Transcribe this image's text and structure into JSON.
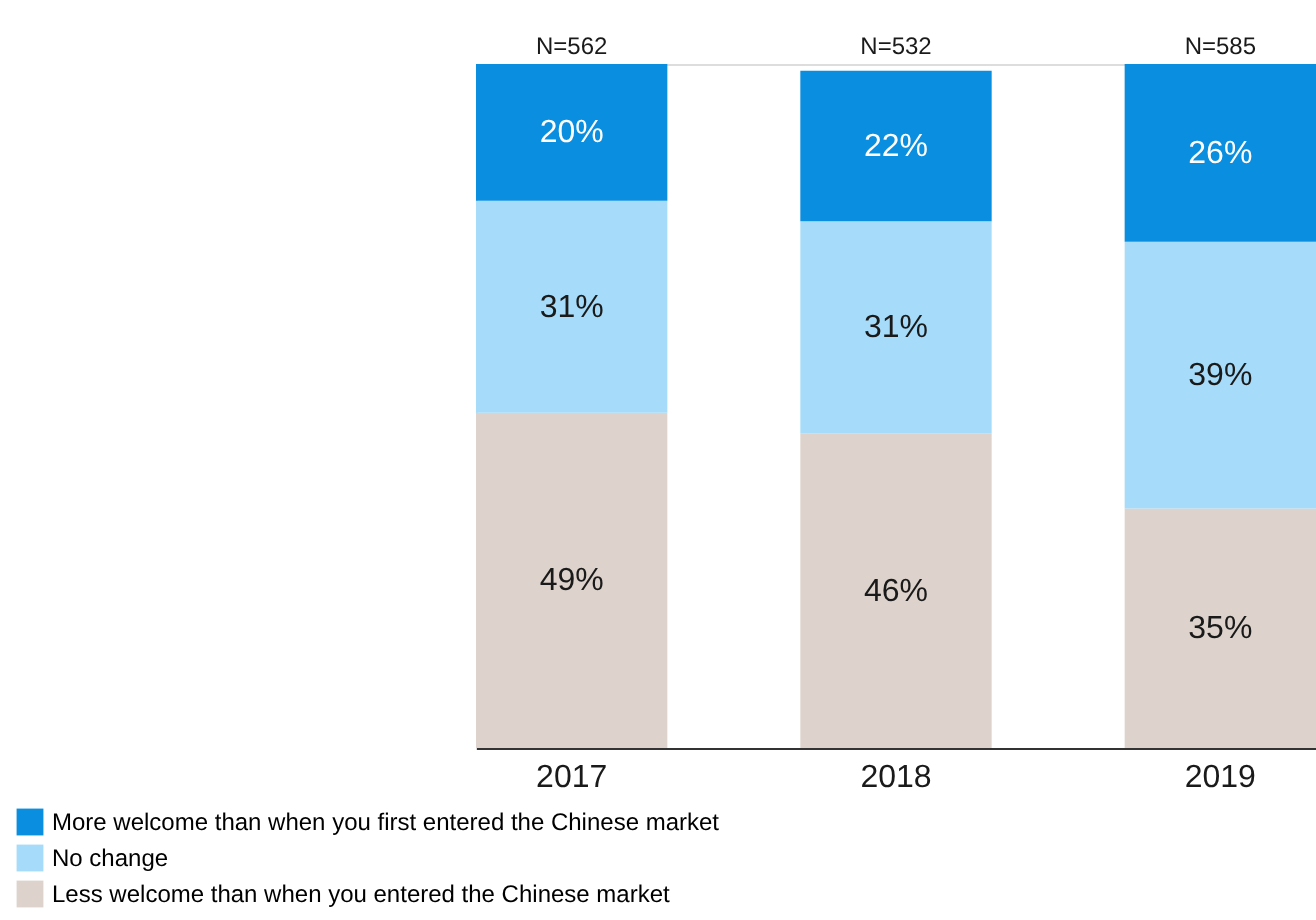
{
  "chart_data": {
    "type": "bar",
    "stacked": true,
    "legend": "bottom",
    "categories": [
      "2017",
      "2018",
      "2019"
    ],
    "annotations": [
      "N=562",
      "N=532",
      "N=585"
    ],
    "series": [
      {
        "name": "Less welcome than when you entered the Chinese market",
        "color": "#ddd3cc",
        "values": [
          49,
          46,
          35
        ],
        "value_labels": [
          "49%",
          "46%",
          "35%"
        ]
      },
      {
        "name": "No change",
        "color": "#a6dcfa",
        "values": [
          31,
          31,
          39
        ],
        "value_labels": [
          "31%",
          "31%",
          "39%"
        ]
      },
      {
        "name": "More welcome than when you first entered the Chinese market",
        "color": "#0a8ee0",
        "values": [
          20,
          22,
          26
        ],
        "value_labels": [
          "20%",
          "22%",
          "26%"
        ]
      }
    ]
  }
}
